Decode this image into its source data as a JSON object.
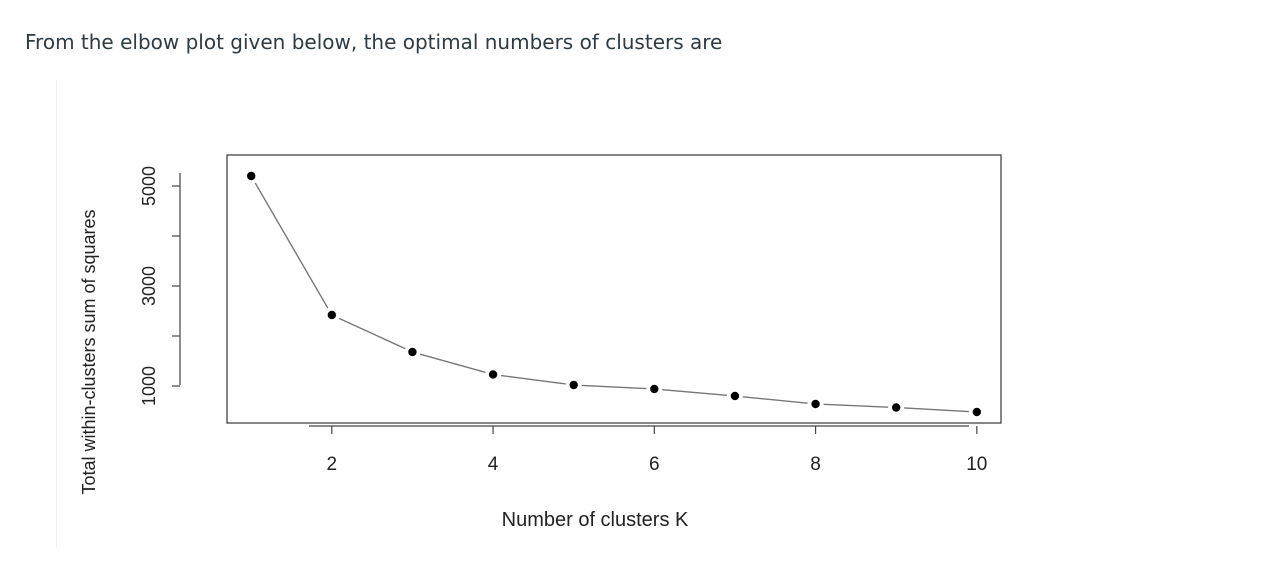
{
  "question": {
    "text": "From the elbow plot given below, the optimal numbers of clusters are"
  },
  "chart_data": {
    "type": "line",
    "xlabel": "Number of clusters K",
    "ylabel": "Total within-clusters sum of squares",
    "x": [
      1,
      2,
      3,
      4,
      5,
      6,
      7,
      8,
      9,
      10
    ],
    "values": [
      5200,
      2420,
      1680,
      1230,
      1020,
      940,
      800,
      640,
      570,
      480
    ],
    "x_ticks": [
      2,
      4,
      6,
      8,
      10
    ],
    "x_tick_labels": [
      "2",
      "4",
      "6",
      "8",
      "10"
    ],
    "y_ticks": [
      1000,
      2000,
      3000,
      4000,
      5000
    ],
    "y_tick_labels": [
      "1000",
      "",
      "3000",
      "",
      "5000"
    ],
    "xlim": [
      0.7,
      10.3
    ],
    "ylim": [
      260,
      5620
    ],
    "markers": true,
    "grid": false,
    "color": "#000000",
    "line_color": "#777777"
  }
}
